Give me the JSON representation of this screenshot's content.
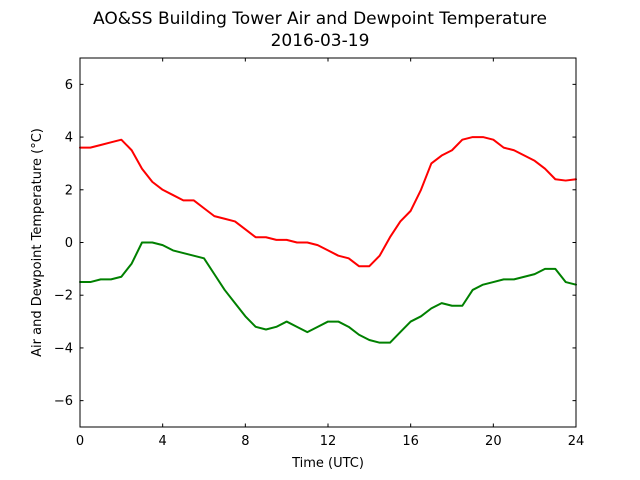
{
  "chart_data": {
    "type": "line",
    "title": "AO&SS Building Tower Air and Dewpoint Temperature",
    "subtitle": "2016-03-19",
    "xlabel": "Time (UTC)",
    "ylabel": "Air and Dewpoint Temperature (°C)",
    "xlim": [
      0,
      24
    ],
    "ylim": [
      -7,
      7
    ],
    "xticks": [
      0,
      4,
      8,
      12,
      16,
      20,
      24
    ],
    "yticks": [
      -6,
      -4,
      -2,
      0,
      2,
      4,
      6
    ],
    "xtick_labels": [
      "0",
      "4",
      "8",
      "12",
      "16",
      "20",
      "24"
    ],
    "ytick_labels": [
      "−6",
      "−4",
      "−2",
      "0",
      "2",
      "4",
      "6"
    ],
    "grid": false,
    "series": [
      {
        "color": "#ff0000",
        "x": [
          0,
          0.5,
          1,
          1.5,
          2,
          2.5,
          3,
          3.5,
          4,
          4.5,
          5,
          5.5,
          6,
          6.5,
          7,
          7.5,
          8,
          8.5,
          9,
          9.5,
          10,
          10.5,
          11,
          11.5,
          12,
          12.5,
          13,
          13.5,
          14,
          14.5,
          15,
          15.5,
          16,
          16.5,
          17,
          17.5,
          18,
          18.5,
          19,
          19.5,
          20,
          20.5,
          21,
          21.5,
          22,
          22.5,
          23,
          23.5,
          24
        ],
        "y": [
          3.6,
          3.6,
          3.7,
          3.8,
          3.9,
          3.5,
          2.8,
          2.3,
          2.0,
          1.8,
          1.6,
          1.6,
          1.3,
          1.0,
          0.9,
          0.8,
          0.5,
          0.2,
          0.2,
          0.1,
          0.1,
          0.0,
          0.0,
          -0.1,
          -0.3,
          -0.5,
          -0.6,
          -0.9,
          -0.9,
          -0.5,
          0.2,
          0.8,
          1.2,
          2.0,
          3.0,
          3.3,
          3.5,
          3.9,
          4.0,
          4.0,
          3.9,
          3.6,
          3.5,
          3.3,
          3.1,
          2.8,
          2.4,
          2.35,
          2.4
        ]
      },
      {
        "color": "#008000",
        "x": [
          0,
          0.5,
          1,
          1.5,
          2,
          2.5,
          3,
          3.5,
          4,
          4.5,
          5,
          5.5,
          6,
          6.5,
          7,
          7.5,
          8,
          8.5,
          9,
          9.5,
          10,
          10.5,
          11,
          11.5,
          12,
          12.5,
          13,
          13.5,
          14,
          14.5,
          15,
          15.5,
          16,
          16.5,
          17,
          17.5,
          18,
          18.5,
          19,
          19.5,
          20,
          20.5,
          21,
          21.5,
          22,
          22.5,
          23,
          23.5,
          24
        ],
        "y": [
          -1.5,
          -1.5,
          -1.4,
          -1.4,
          -1.3,
          -0.8,
          0.0,
          0.0,
          -0.1,
          -0.3,
          -0.4,
          -0.5,
          -0.6,
          -1.2,
          -1.8,
          -2.3,
          -2.8,
          -3.2,
          -3.3,
          -3.2,
          -3.0,
          -3.2,
          -3.4,
          -3.2,
          -3.0,
          -3.0,
          -3.2,
          -3.5,
          -3.7,
          -3.8,
          -3.8,
          -3.4,
          -3.0,
          -2.8,
          -2.5,
          -2.3,
          -2.4,
          -2.4,
          -1.8,
          -1.6,
          -1.5,
          -1.4,
          -1.4,
          -1.3,
          -1.2,
          -1.0,
          -1.0,
          -1.5,
          -1.6
        ]
      }
    ]
  }
}
